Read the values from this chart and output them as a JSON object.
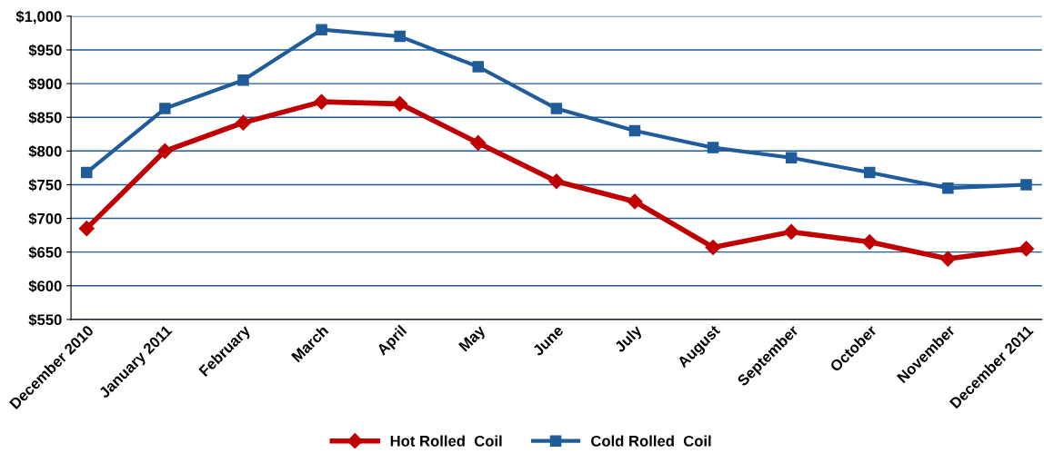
{
  "chart_data": {
    "type": "line",
    "categories": [
      "December 2010",
      "January 2011",
      "February",
      "March",
      "April",
      "May",
      "June",
      "July",
      "August",
      "September",
      "October",
      "November",
      "December 2011"
    ],
    "series": [
      {
        "name": "Hot Rolled  Coil",
        "color": "#c00000",
        "marker": "diamond",
        "values": [
          685,
          800,
          842,
          873,
          870,
          812,
          755,
          725,
          657,
          680,
          665,
          640,
          655
        ]
      },
      {
        "name": "Cold Rolled  Coil",
        "color": "#1f5c99",
        "marker": "square",
        "values": [
          768,
          863,
          905,
          980,
          970,
          925,
          863,
          830,
          805,
          790,
          768,
          745,
          750
        ]
      }
    ],
    "ylim": [
      550,
      1000
    ],
    "yticks": [
      {
        "value": 550,
        "label": "$550"
      },
      {
        "value": 600,
        "label": "$600"
      },
      {
        "value": 650,
        "label": "$650"
      },
      {
        "value": 700,
        "label": "$700"
      },
      {
        "value": 750,
        "label": "$750"
      },
      {
        "value": 800,
        "label": "$800"
      },
      {
        "value": 850,
        "label": "$850"
      },
      {
        "value": 900,
        "label": "$900"
      },
      {
        "value": 950,
        "label": "$950"
      },
      {
        "value": 1000,
        "label": "$1,000"
      }
    ],
    "grid": "y",
    "legend": "bottom",
    "line_style": "solid"
  }
}
